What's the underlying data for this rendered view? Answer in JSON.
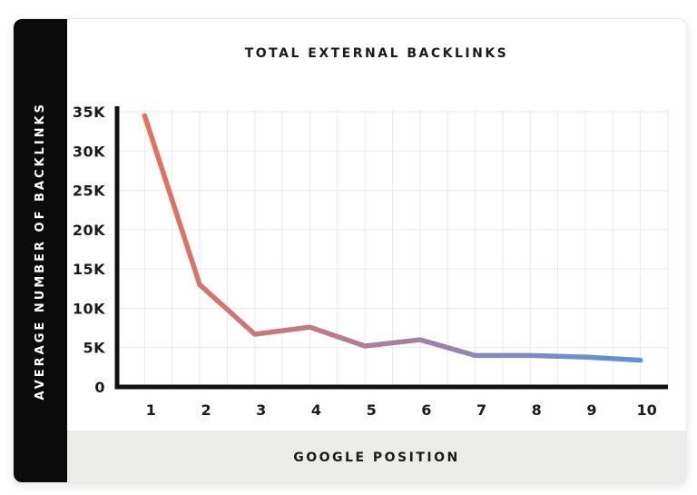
{
  "chart_data": {
    "type": "line",
    "title": "TOTAL EXTERNAL BACKLINKS",
    "x_axis_title": "GOOGLE POSITION",
    "y_axis_title": "AVERAGE NUMBER OF BACKLINKS",
    "x": [
      1,
      2,
      3,
      4,
      5,
      6,
      7,
      8,
      9,
      10
    ],
    "x_tick_labels": [
      "1",
      "2",
      "3",
      "4",
      "5",
      "6",
      "7",
      "8",
      "9",
      "10"
    ],
    "y_ticks": [
      35000,
      30000,
      25000,
      20000,
      15000,
      10000,
      5000,
      0
    ],
    "y_tick_labels": [
      "35K",
      "30K",
      "25K",
      "20K",
      "15K",
      "10K",
      "5K",
      "0"
    ],
    "series": [
      {
        "name": "Total external backlinks",
        "values": [
          34500,
          13000,
          6700,
          7600,
          5200,
          6000,
          4000,
          4000,
          3800,
          3400
        ]
      }
    ],
    "xlim": [
      0.5,
      10.5
    ],
    "ylim": [
      0,
      35000
    ],
    "grid": true,
    "legend": "none"
  },
  "colors": {
    "line_gradient_start": "#E8705A",
    "line_gradient_mid": "#A8809E",
    "line_gradient_end": "#5B93DB",
    "gridline": "#EAEAEA",
    "axis": "#111111",
    "sidebar_bg": "#0B0B0B",
    "footer_bg": "#ECECEA",
    "card_border": "#E9E9E9",
    "text": "#1A1A1A"
  }
}
